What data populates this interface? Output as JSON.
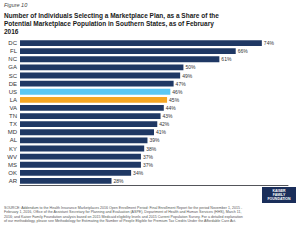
{
  "chart_data": {
    "type": "bar",
    "orientation": "horizontal",
    "title": "Number of Individuals Selecting a Marketplace Plan, as a Share of the\nPotential Marketplace Population in Southern States, as of February\n2016",
    "subtitle": "Figure 10",
    "categories": [
      "DC",
      "FL",
      "NC",
      "GA",
      "SC",
      "DE",
      "US",
      "LA",
      "VA",
      "TN",
      "TX",
      "MD",
      "AL",
      "KY",
      "WV",
      "MS",
      "OK",
      "AR"
    ],
    "values": [
      74,
      66,
      61,
      50,
      49,
      47,
      46,
      45,
      44,
      43,
      42,
      41,
      39,
      38,
      37,
      37,
      34,
      28
    ],
    "value_labels": [
      "74%",
      "66%",
      "61%",
      "50%",
      "49%",
      "47%",
      "46%",
      "45%",
      "44%",
      "43%",
      "42%",
      "41%",
      "39%",
      "38%",
      "37%",
      "37%",
      "34%",
      "28%"
    ],
    "colors": [
      "#1f3864",
      "#1f3864",
      "#1f3864",
      "#1f3864",
      "#1f3864",
      "#1f3864",
      "#5bc8f5",
      "#f5a623",
      "#1f3864",
      "#1f3864",
      "#1f3864",
      "#1f3864",
      "#1f3864",
      "#1f3864",
      "#1f3864",
      "#1f3864",
      "#1f3864",
      "#1f3864"
    ],
    "xlim": [
      0,
      82
    ],
    "data_labels": true,
    "tick_labels": "y",
    "grid": false,
    "annotations": [
      "SOURCE: Addendum to the Health Insurance Marketplaces 2016 Open Enrollment Period: Final Enrollment Report for the period November 1, 2015 -\nFebruary 1, 2016, Office of the Assistant Secretary for Planning and Evaluation (ASPE), Department of Health and Human Services (HHS), March 11,\n2016; and Kaiser Family Foundation analysis based on 2015 Medicaid eligibility levels and 2015 Current Population Survey. For a detailed explanation\nof our methodology, please see Methodology for Estimating the Number of People Eligible for Premium Tax Credits Under the Affordable Care Act.",
      "KAISER",
      "FAMILY",
      "FOUNDATION"
    ]
  }
}
